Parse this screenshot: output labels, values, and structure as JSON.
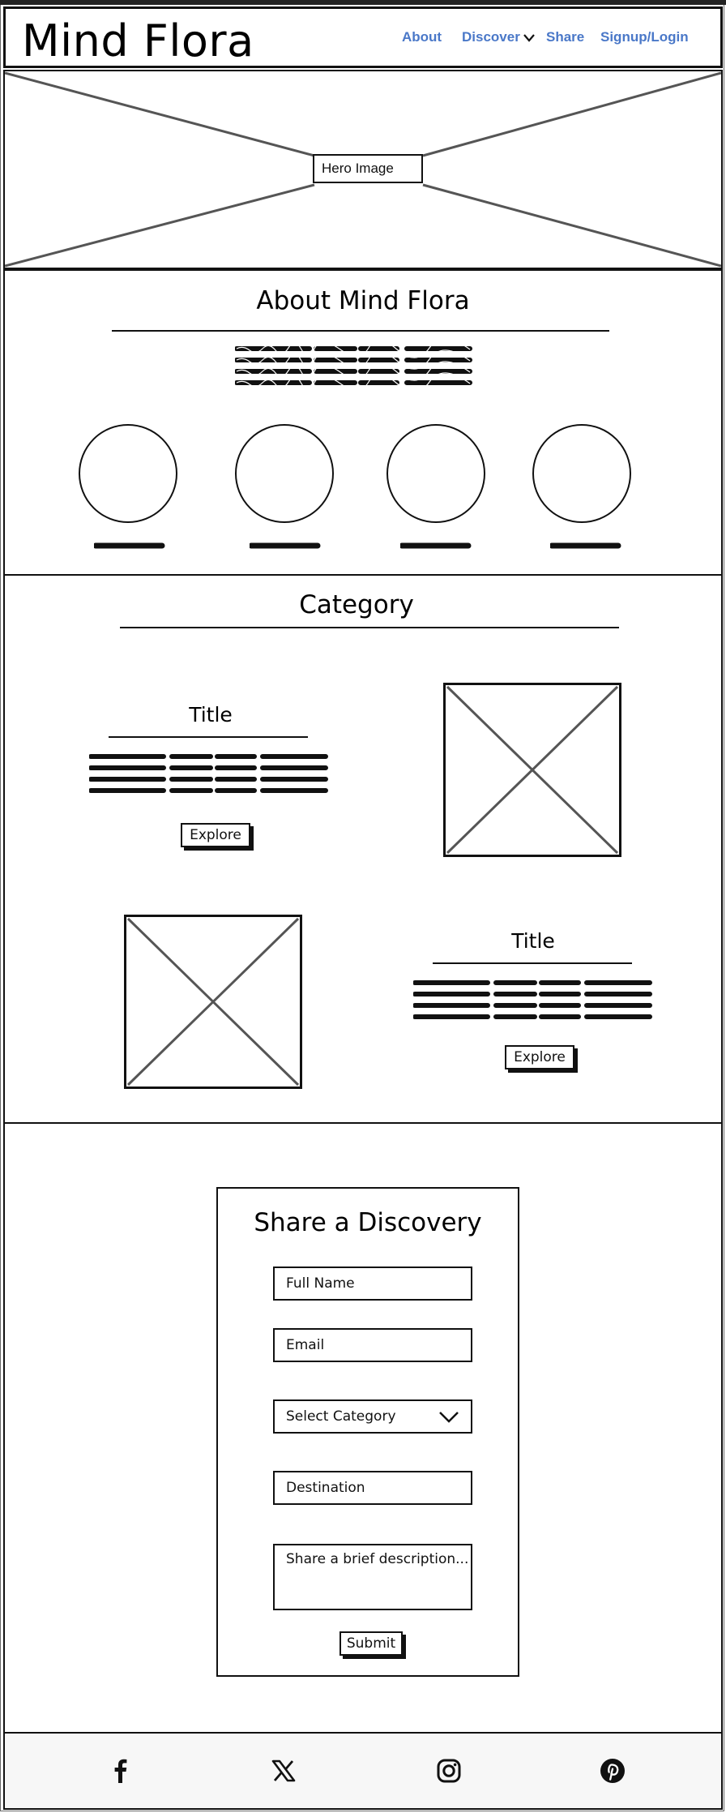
{
  "header": {
    "logo": "Mind Flora",
    "nav": {
      "about": "About",
      "discover": "Discover",
      "share": "Share",
      "signup": "Signup/Login"
    },
    "link_color": "#4a78c8"
  },
  "hero": {
    "label": "Hero Image"
  },
  "about": {
    "title": "About Mind Flora"
  },
  "category": {
    "title": "Category",
    "items": [
      {
        "title": "Title",
        "button": "Explore"
      },
      {
        "title": "Title",
        "button": "Explore"
      }
    ]
  },
  "share_form": {
    "title": "Share a Discovery",
    "full_name": "Full Name",
    "email": "Email",
    "category": "Select Category",
    "destination": "Destination",
    "description": "Share a brief description...",
    "submit": "Submit"
  },
  "footer": {
    "icons": [
      "facebook-icon",
      "x-icon",
      "instagram-icon",
      "pinterest-icon"
    ]
  }
}
